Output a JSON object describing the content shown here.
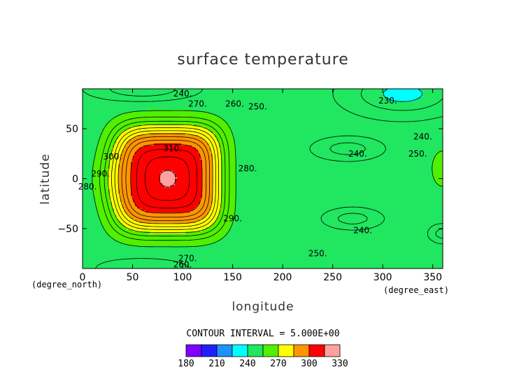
{
  "chart_data": {
    "type": "heatmap",
    "title": "surface temperature",
    "xlabel": "longitude",
    "ylabel": "latitude",
    "x_unit_label": "(degree_east)",
    "y_unit_label": "(degree_north)",
    "xlim": [
      0,
      360
    ],
    "ylim": [
      -90,
      90
    ],
    "x_ticks": [
      "0",
      "50",
      "100",
      "150",
      "200",
      "250",
      "300",
      "350"
    ],
    "x_tick_values": [
      0,
      50,
      100,
      150,
      200,
      250,
      300,
      350
    ],
    "y_ticks": [
      "50",
      "0",
      "−50"
    ],
    "y_tick_values": [
      50,
      0,
      -50
    ],
    "contour_interval_text": "CONTOUR INTERVAL = 5.000E+00",
    "colorbar": {
      "levels": [
        180,
        195,
        210,
        225,
        240,
        255,
        270,
        285,
        300,
        315,
        330
      ],
      "tick_labels": [
        "180",
        "210",
        "240",
        "270",
        "300",
        "330"
      ],
      "tick_values": [
        180,
        210,
        240,
        270,
        300,
        330
      ],
      "colors": [
        "#8000ff",
        "#2020ff",
        "#1e90ff",
        "#00ffff",
        "#20e660",
        "#50f000",
        "#ffff00",
        "#ff9600",
        "#ff0000",
        "#ffa0a0"
      ]
    },
    "contour_labels": [
      {
        "text": "240.",
        "x": 100,
        "y": 85
      },
      {
        "text": "270.",
        "x": 115,
        "y": 75
      },
      {
        "text": "260.",
        "x": 152,
        "y": 75
      },
      {
        "text": "250.",
        "x": 175,
        "y": 72
      },
      {
        "text": "230.",
        "x": 305,
        "y": 78
      },
      {
        "text": "240.",
        "x": 340,
        "y": 42
      },
      {
        "text": "250.",
        "x": 335,
        "y": 25
      },
      {
        "text": "240.",
        "x": 275,
        "y": 25
      },
      {
        "text": "310.",
        "x": 90,
        "y": 30
      },
      {
        "text": "300.",
        "x": 30,
        "y": 22
      },
      {
        "text": "290.",
        "x": 18,
        "y": 5
      },
      {
        "text": "280.",
        "x": 5,
        "y": -8
      },
      {
        "text": "280.",
        "x": 165,
        "y": 10
      },
      {
        "text": "290.",
        "x": 150,
        "y": -40
      },
      {
        "text": "240.",
        "x": 280,
        "y": -52
      },
      {
        "text": "250.",
        "x": 235,
        "y": -75
      },
      {
        "text": "270.",
        "x": 105,
        "y": -80
      },
      {
        "text": "260.",
        "x": 100,
        "y": -86
      }
    ],
    "grid": false,
    "legend": "bottom colorbar"
  }
}
